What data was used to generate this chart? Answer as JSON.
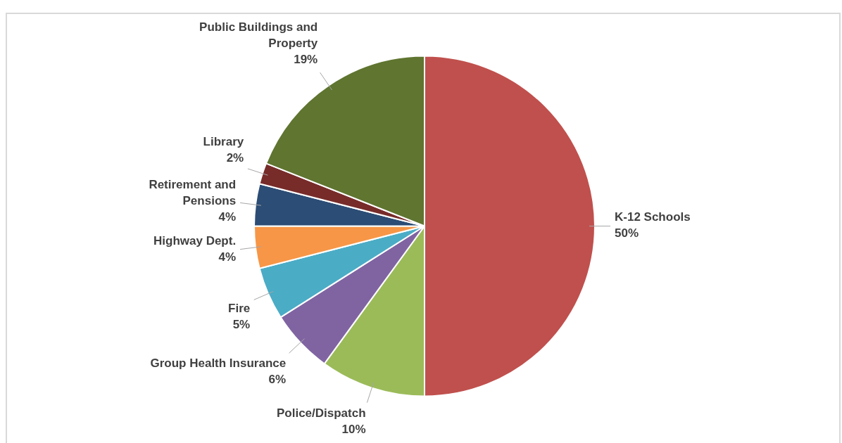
{
  "chart_data": {
    "type": "pie",
    "categories": [
      "K-12 Schools",
      "Police/Dispatch",
      "Group Health Insurance",
      "Fire",
      "Highway Dept.",
      "Retirement and Pensions",
      "Library",
      "Public Buildings and Property"
    ],
    "values": [
      50,
      10,
      6,
      5,
      4,
      4,
      2,
      19
    ],
    "value_labels": [
      "50%",
      "10%",
      "6%",
      "5%",
      "4%",
      "4%",
      "2%",
      "19%"
    ],
    "colors": [
      "#c0504d",
      "#9bbb59",
      "#8064a2",
      "#4bacc6",
      "#f79646",
      "#2c4d75",
      "#772c2a",
      "#5f7530"
    ],
    "legend": false
  }
}
